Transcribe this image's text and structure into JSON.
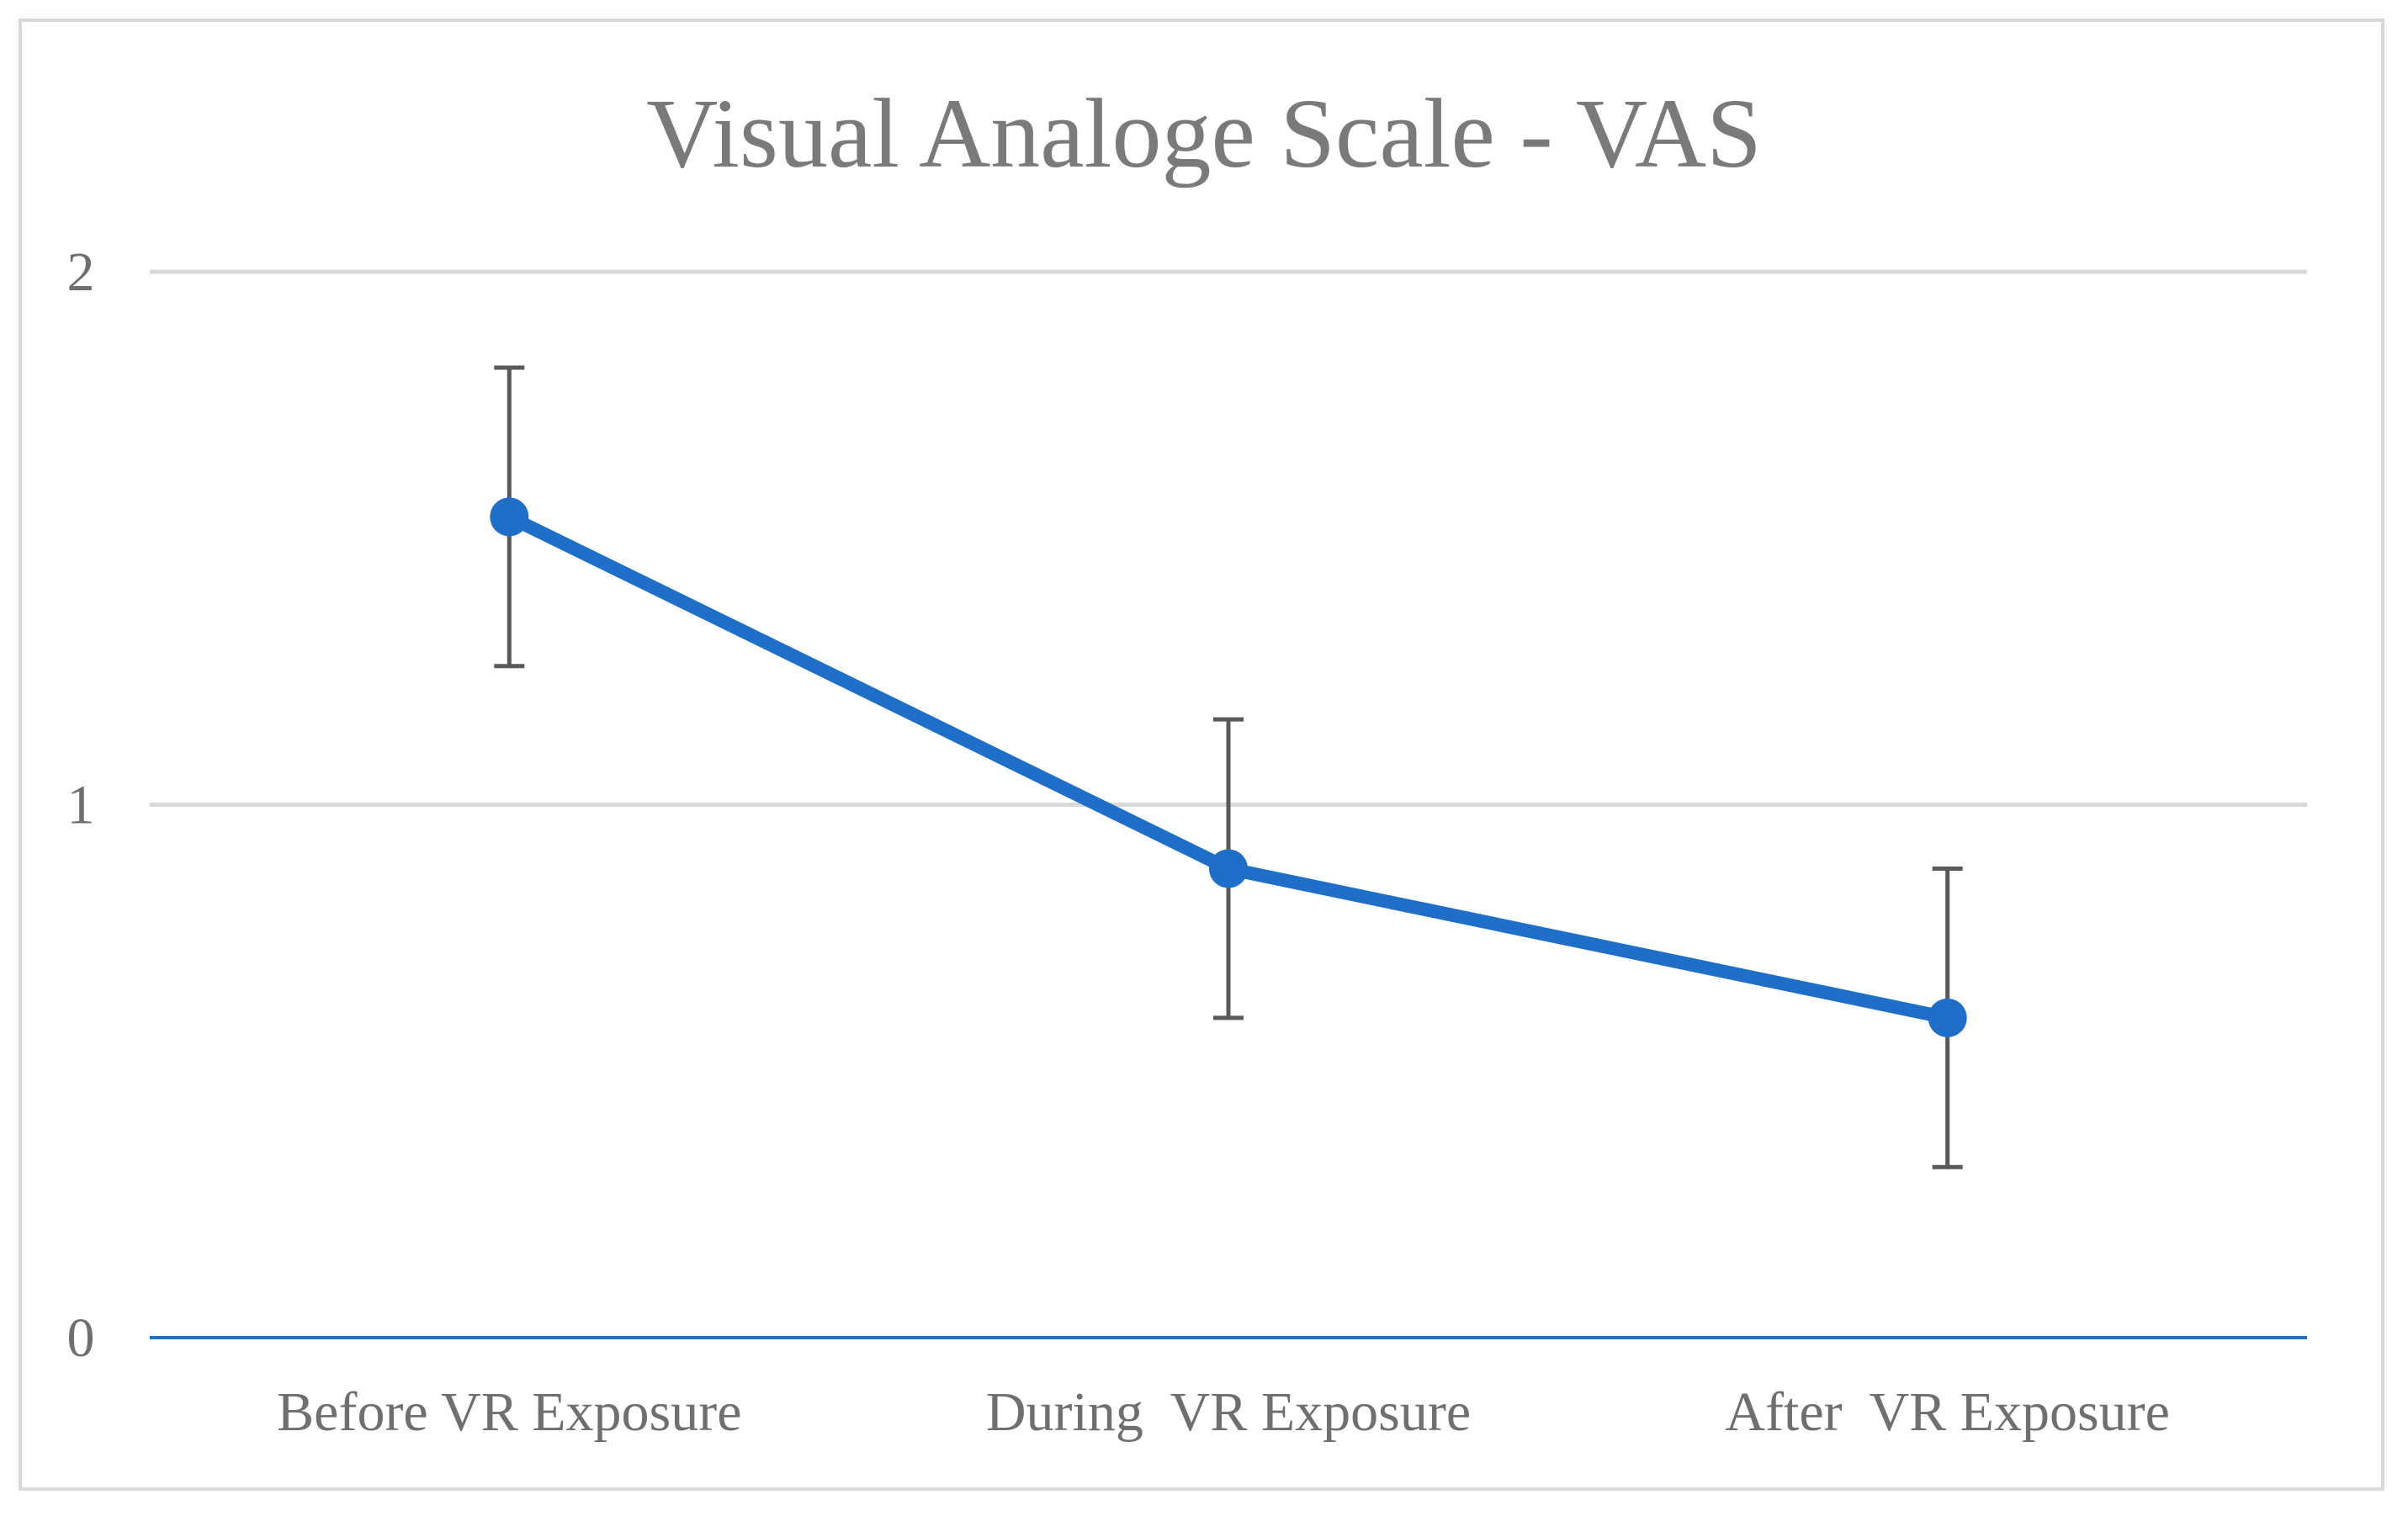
{
  "chart_data": {
    "type": "line",
    "title": "Visual Analoge Scale - VAS",
    "xlabel": "",
    "ylabel": "",
    "ylim": [
      0,
      2
    ],
    "yticks": [
      "0",
      "1",
      "2"
    ],
    "grid": true,
    "categories": [
      "Before VR Exposure",
      "During  VR Exposure",
      "After  VR Exposure"
    ],
    "series": [
      {
        "name": "VAS",
        "values": [
          1.54,
          0.88,
          0.6
        ],
        "error": [
          0.28,
          0.28,
          0.28
        ],
        "color": "#1f6fc9"
      }
    ],
    "colors": {
      "gridline": "#d9d9d9",
      "error_bar": "#595959",
      "axis": "#1f6fc9",
      "tick_text": "#6f6f6f",
      "title_text": "#7a7a7a"
    }
  }
}
